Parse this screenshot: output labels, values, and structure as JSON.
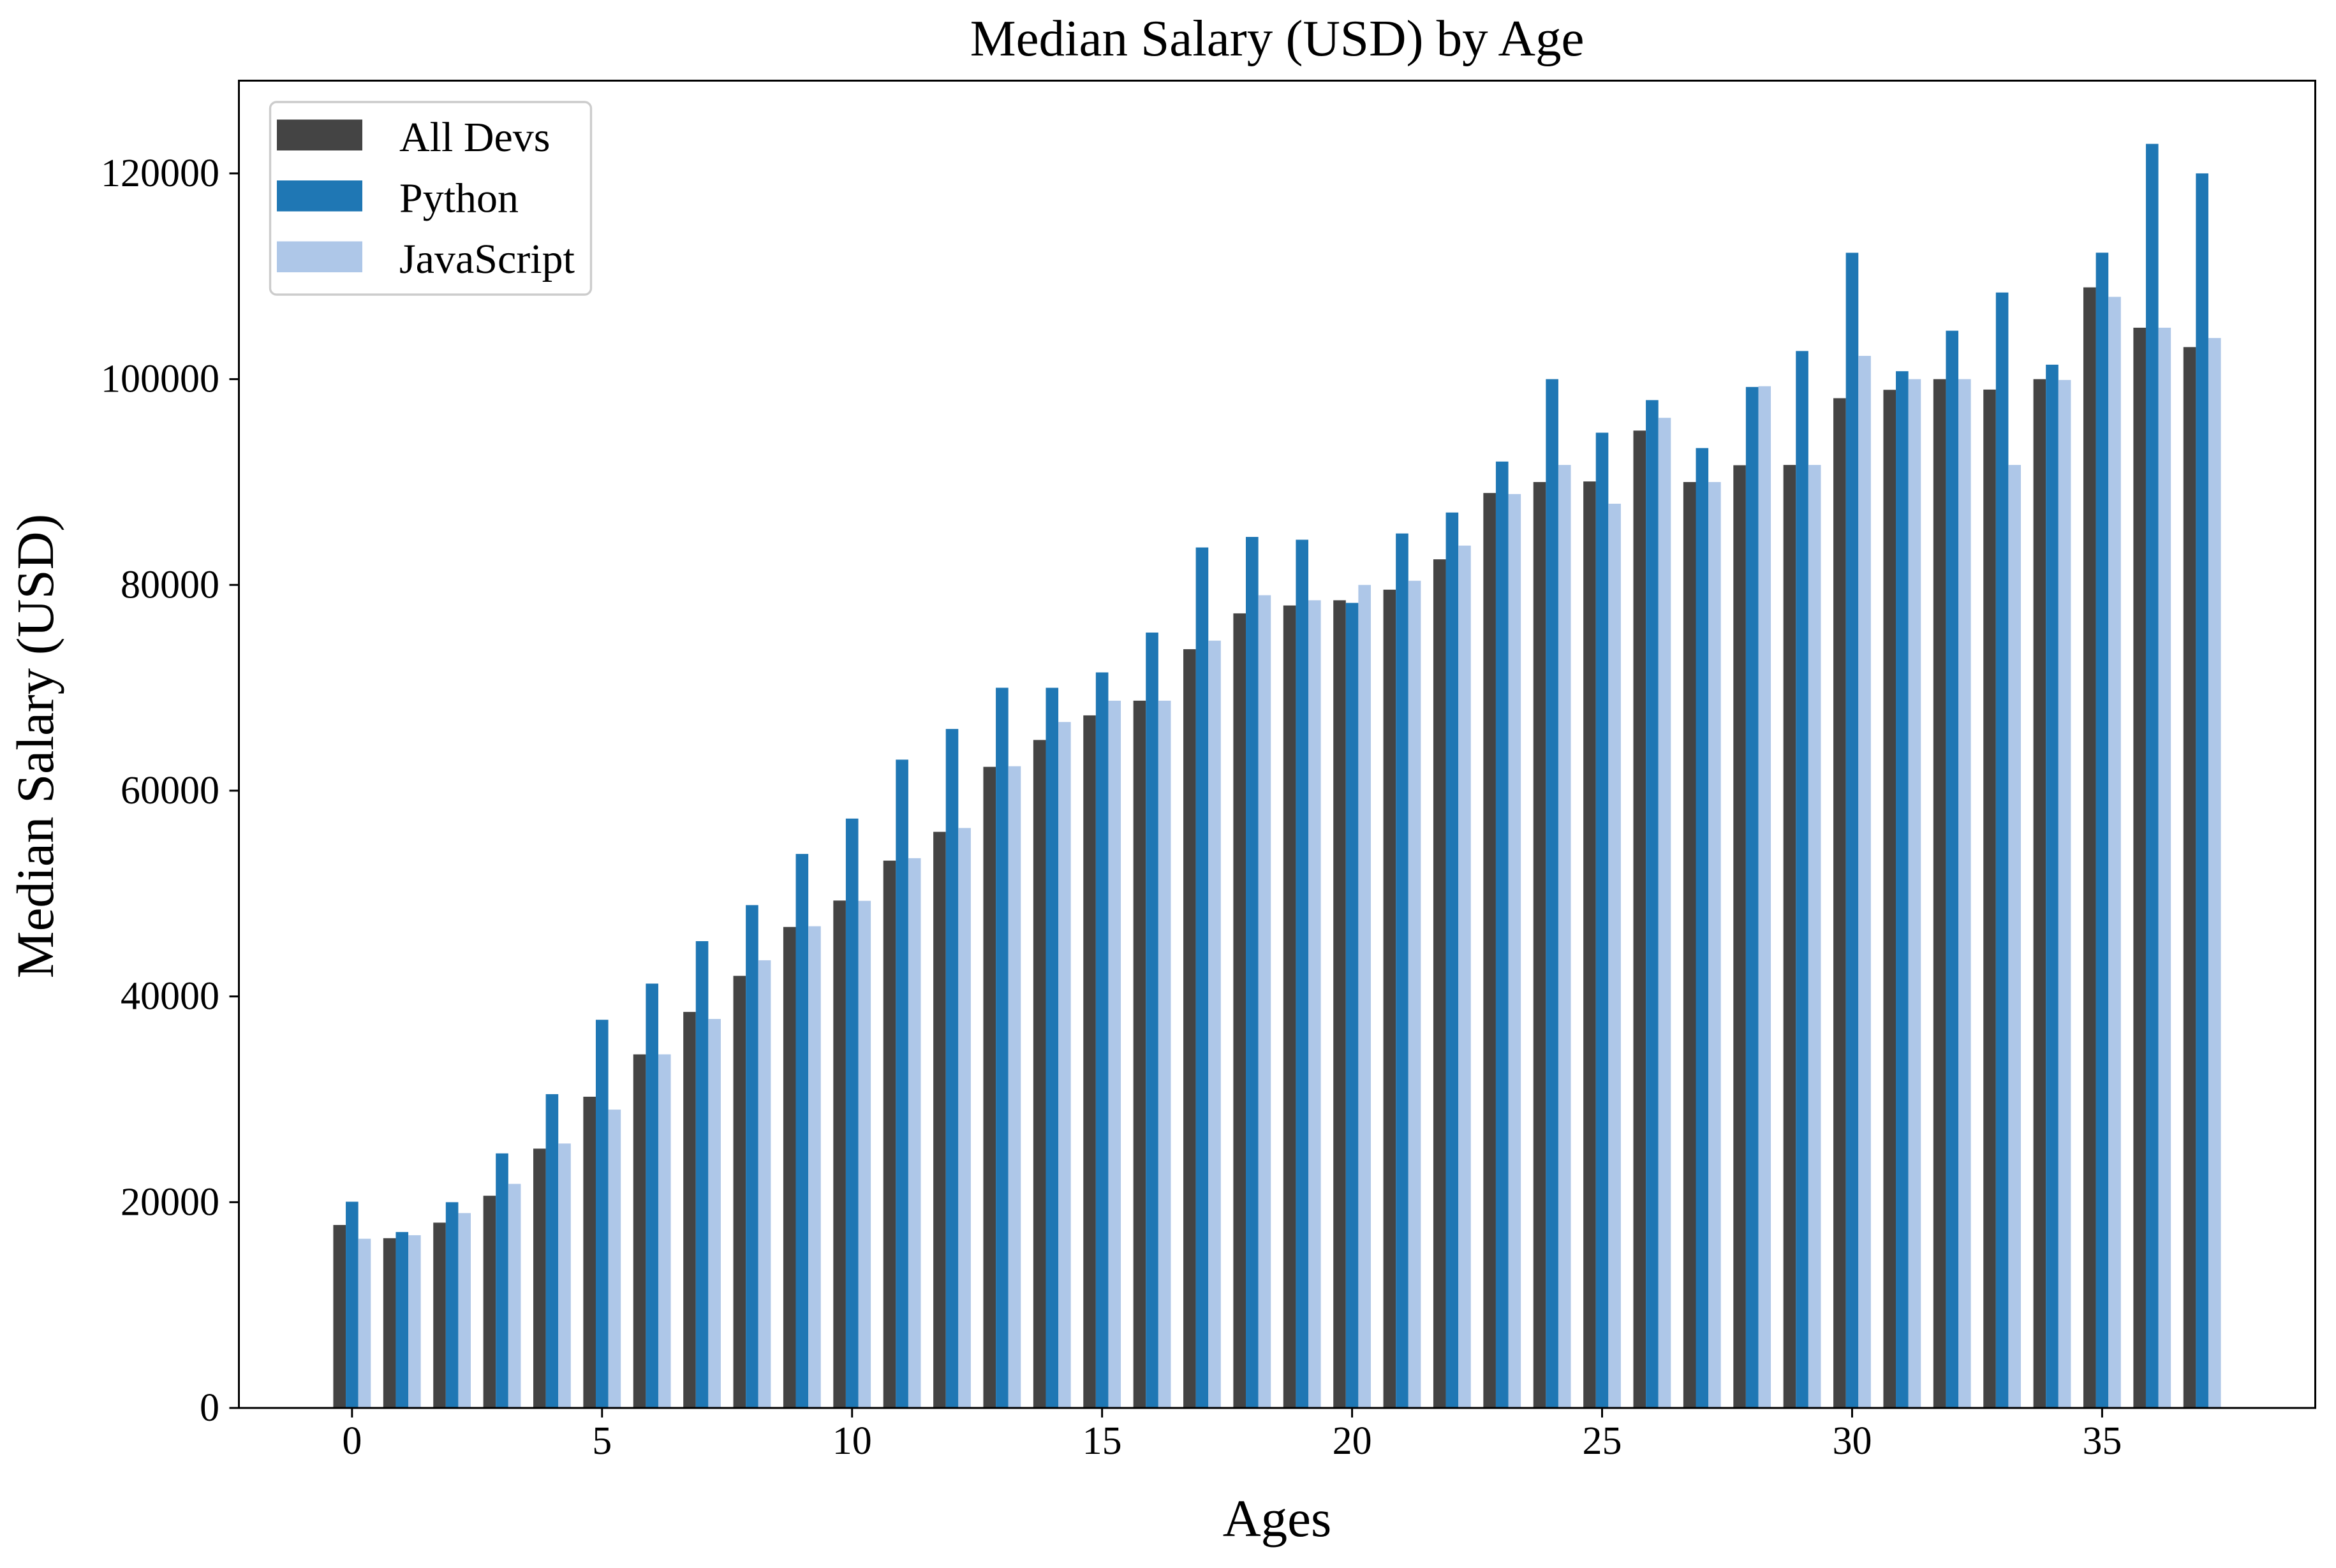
{
  "figure": {
    "background_color": "#ffffff"
  },
  "chart_data": {
    "type": "bar",
    "title": "Median Salary (USD) by Age",
    "xlabel": "Ages",
    "ylabel": "Median Salary (USD)",
    "x": [
      0,
      1,
      2,
      3,
      4,
      5,
      6,
      7,
      8,
      9,
      10,
      11,
      12,
      13,
      14,
      15,
      16,
      17,
      18,
      19,
      20,
      21,
      22,
      23,
      24,
      25,
      26,
      27,
      28,
      29,
      30,
      31,
      32,
      33,
      34,
      35,
      36,
      37
    ],
    "series": [
      {
        "name": "All Devs",
        "color": "#444444",
        "values": [
          17784,
          16500,
          18012,
          20628,
          25206,
          30252,
          34368,
          38496,
          42000,
          46752,
          49320,
          53200,
          56000,
          62316,
          64928,
          67317,
          68748,
          73752,
          77232,
          78000,
          78508,
          79536,
          82488,
          88935,
          90000,
          90056,
          95000,
          90000,
          91633,
          91660,
          98150,
          98964,
          100000,
          98988,
          100000,
          108923,
          105000,
          103117
        ]
      },
      {
        "name": "Python",
        "color": "#1f77b4",
        "values": [
          20046,
          17100,
          20000,
          24744,
          30500,
          37732,
          41247,
          45372,
          48876,
          53850,
          57287,
          63016,
          65998,
          70003,
          70000,
          71496,
          75370,
          83640,
          84666,
          84392,
          78254,
          85000,
          87038,
          91991,
          100000,
          94796,
          97962,
          93302,
          99240,
          102736,
          112285,
          100771,
          104708,
          108423,
          101407,
          112292,
          122870,
          120000
        ]
      },
      {
        "name": "JavaScript",
        "color": "#aec7e8",
        "values": [
          16446,
          16791,
          18942,
          21780,
          25704,
          29000,
          34372,
          37810,
          43515,
          46823,
          49293,
          53437,
          56373,
          62375,
          66674,
          68745,
          68746,
          74583,
          79000,
          78508,
          79996,
          80403,
          83820,
          88833,
          91660,
          87892,
          96243,
          90000,
          99313,
          91660,
          102264,
          100000,
          100000,
          91660,
          99920,
          108000,
          105000,
          104000
        ]
      }
    ],
    "bar_width": 0.25,
    "xticks": [
      0,
      5,
      10,
      15,
      20,
      25,
      30,
      35
    ],
    "yticks": [
      0,
      20000,
      40000,
      60000,
      80000,
      100000,
      120000
    ],
    "xlim": [
      -2.2625,
      39.2625
    ],
    "ylim": [
      0,
      129013.5
    ],
    "grid": false,
    "legend": {
      "position": "upper left",
      "labels": [
        "All Devs",
        "Python",
        "JavaScript"
      ]
    },
    "axis_color": "#000000",
    "legend_border_color": "#cccccc"
  }
}
